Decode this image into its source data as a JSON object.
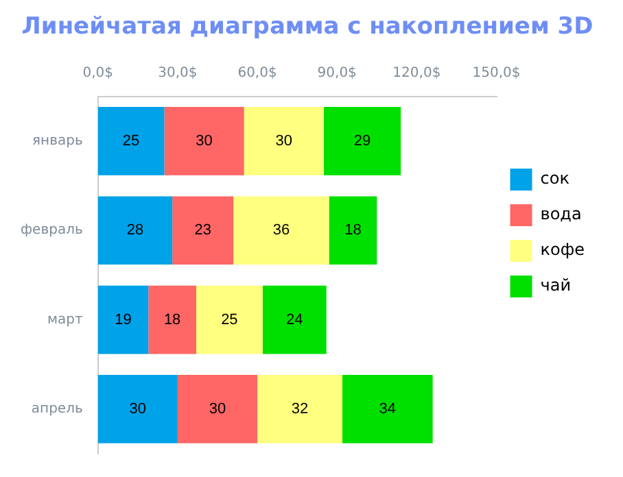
{
  "chart_data": {
    "type": "bar",
    "orientation": "horizontal",
    "stacked": true,
    "title": "Линейчатая диаграмма с накоплением 3D",
    "categories": [
      "январь",
      "февраль",
      "март",
      "апрель"
    ],
    "series": [
      {
        "name": "сок",
        "color": "#00a2e8",
        "values": [
          25,
          28,
          19,
          30
        ]
      },
      {
        "name": "вода",
        "color": "#ff6666",
        "values": [
          30,
          23,
          18,
          30
        ]
      },
      {
        "name": "кофе",
        "color": "#ffff80",
        "values": [
          30,
          36,
          25,
          32
        ]
      },
      {
        "name": "чай",
        "color": "#00e000",
        "values": [
          29,
          18,
          24,
          34
        ]
      }
    ],
    "xlim": [
      0,
      150
    ],
    "xticks": [
      {
        "value": 0,
        "label": "0,0$"
      },
      {
        "value": 30,
        "label": "30,0$"
      },
      {
        "value": 60,
        "label": "60,0$"
      },
      {
        "value": 90,
        "label": "90,0$"
      },
      {
        "value": 120,
        "label": "120,0$"
      },
      {
        "value": 150,
        "label": "150,0$"
      }
    ],
    "data_labels": true,
    "grid": false,
    "legend": "right"
  }
}
